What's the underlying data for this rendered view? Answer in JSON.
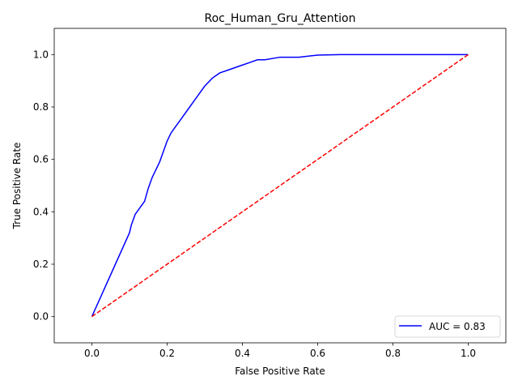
{
  "chart_data": {
    "type": "line",
    "title": "Roc_Human_Gru_Attention",
    "xlabel": "False Positive Rate",
    "ylabel": "True Positive Rate",
    "xlim": [
      -0.1,
      1.1
    ],
    "ylim": [
      -0.1,
      1.1
    ],
    "grid": false,
    "legend_position": "lower-right",
    "x_ticks": [
      0.0,
      0.2,
      0.4,
      0.6,
      0.8,
      1.0
    ],
    "x_tick_labels": [
      "0.0",
      "0.2",
      "0.4",
      "0.6",
      "0.8",
      "1.0"
    ],
    "y_ticks": [
      0.0,
      0.2,
      0.4,
      0.6,
      0.8,
      1.0
    ],
    "y_tick_labels": [
      "0.0",
      "0.2",
      "0.4",
      "0.6",
      "0.8",
      "1.0"
    ],
    "series": [
      {
        "name": "AUC = 0.83",
        "color": "#0000ff",
        "style": "solid",
        "x": [
          0.0,
          0.1,
          0.105,
          0.115,
          0.13,
          0.14,
          0.15,
          0.16,
          0.17,
          0.18,
          0.19,
          0.2,
          0.21,
          0.22,
          0.24,
          0.26,
          0.28,
          0.3,
          0.32,
          0.34,
          0.36,
          0.38,
          0.4,
          0.42,
          0.44,
          0.46,
          0.5,
          0.55,
          0.58,
          0.6,
          0.66,
          0.7,
          0.8,
          0.9,
          1.0
        ],
        "y": [
          0.0,
          0.32,
          0.35,
          0.39,
          0.42,
          0.44,
          0.49,
          0.53,
          0.56,
          0.59,
          0.63,
          0.67,
          0.7,
          0.72,
          0.76,
          0.8,
          0.84,
          0.88,
          0.91,
          0.93,
          0.94,
          0.95,
          0.96,
          0.97,
          0.98,
          0.98,
          0.99,
          0.99,
          0.995,
          0.998,
          1.0,
          1.0,
          1.0,
          1.0,
          1.0
        ]
      },
      {
        "name": "",
        "color": "#ff0000",
        "style": "dashed",
        "x": [
          0.0,
          1.0
        ],
        "y": [
          0.0,
          1.0
        ]
      }
    ]
  }
}
